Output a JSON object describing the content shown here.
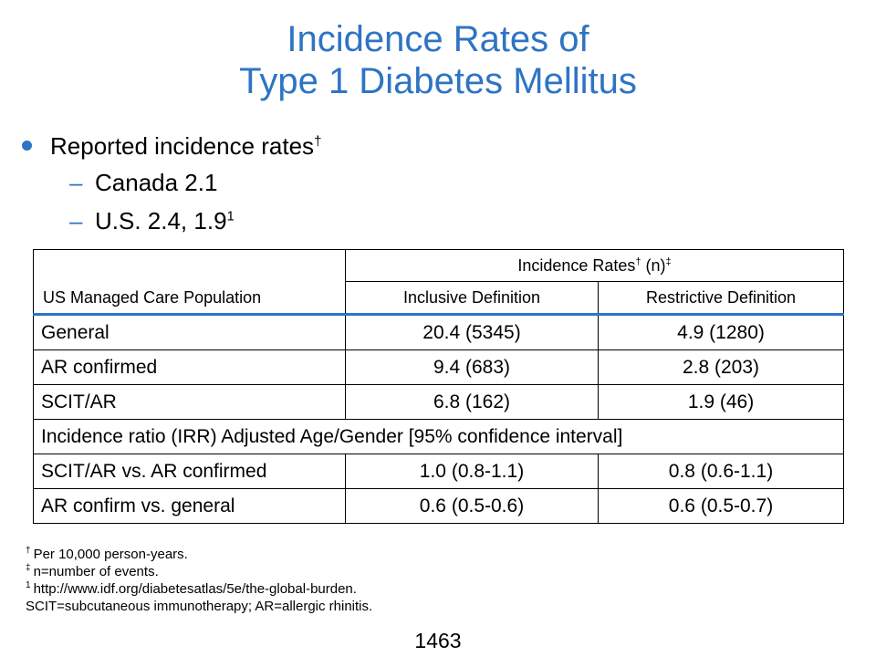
{
  "title": {
    "line1": "Incidence Rates of",
    "line2": "Type 1 Diabetes Mellitus"
  },
  "bullets": {
    "main": "Reported incidence rates",
    "main_sup": "†",
    "sub": [
      {
        "text": "Canada 2.1",
        "sup": ""
      },
      {
        "text": "U.S. 2.4, 1.9",
        "sup": "1"
      }
    ]
  },
  "table": {
    "population_header": "US Managed Care Population",
    "rates_header": "Incidence Rates",
    "rates_header_dagger": "†",
    "rates_header_n": " (n)",
    "rates_header_ddagger": "‡",
    "col_inclusive": "Inclusive Definition",
    "col_restrictive": "Restrictive Definition",
    "rows": [
      {
        "label": "General",
        "inclusive": "20.4 (5345)",
        "restrictive": "4.9 (1280)"
      },
      {
        "label": "AR confirmed",
        "inclusive": "9.4 (683)",
        "restrictive": "2.8 (203)"
      },
      {
        "label": "SCIT/AR",
        "inclusive": "6.8 (162)",
        "restrictive": "1.9 (46)"
      }
    ],
    "section_label": "Incidence ratio (IRR) Adjusted Age/Gender [95% confidence interval]",
    "ratio_rows": [
      {
        "label": "SCIT/AR vs. AR confirmed",
        "inclusive": "1.0 (0.8-1.1)",
        "restrictive": "0.8 (0.6-1.1)"
      },
      {
        "label": "AR confirm vs. general",
        "inclusive": "0.6 (0.5-0.6)",
        "restrictive": "0.6 (0.5-0.7)"
      }
    ]
  },
  "footnotes": [
    {
      "mark": "†",
      "text": "Per 10,000 person-years."
    },
    {
      "mark": "‡",
      "text": "n=number of events."
    },
    {
      "mark": "1",
      "text": "http://www.idf.org/diabetesatlas/5e/the-global-burden."
    },
    {
      "mark": "",
      "text": "SCIT=subcutaneous immunotherapy; AR=allergic rhinitis."
    }
  ],
  "page_number": "1463",
  "colors": {
    "accent": "#2e74c4",
    "text": "#000000",
    "background": "#ffffff"
  }
}
